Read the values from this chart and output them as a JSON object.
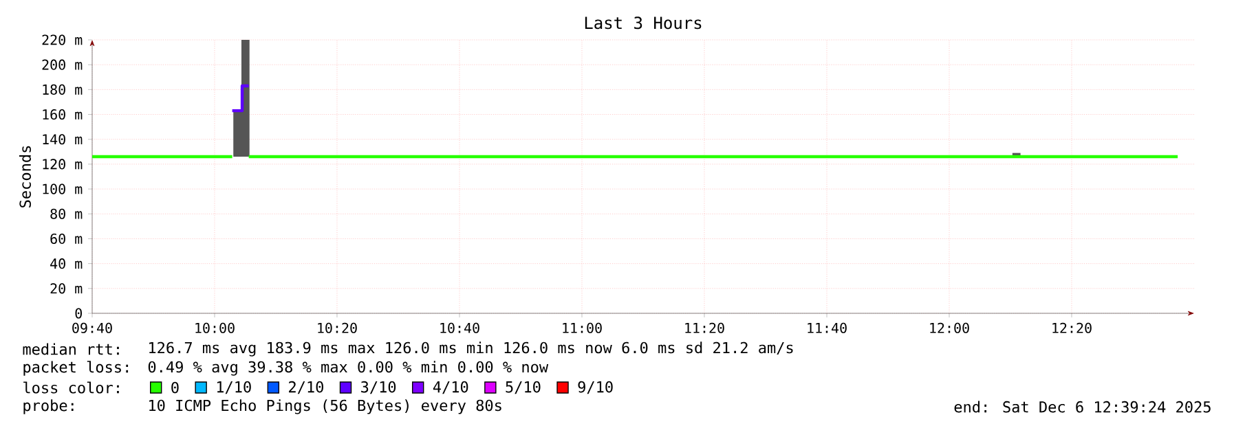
{
  "chart_data": {
    "type": "line",
    "title": "Last 3 Hours",
    "ylabel": "Seconds",
    "xlim": [
      9.6667,
      12.6667
    ],
    "ylim": [
      0,
      220
    ],
    "xticks": [
      {
        "value": 9.6667,
        "label": "09:40"
      },
      {
        "value": 10,
        "label": "10:00"
      },
      {
        "value": 10.3333,
        "label": "10:20"
      },
      {
        "value": 10.6667,
        "label": "10:40"
      },
      {
        "value": 11,
        "label": "11:00"
      },
      {
        "value": 11.3333,
        "label": "11:20"
      },
      {
        "value": 11.6667,
        "label": "11:40"
      },
      {
        "value": 12,
        "label": "12:00"
      },
      {
        "value": 12.3333,
        "label": "12:20"
      }
    ],
    "yticks": [
      0,
      {
        "value": 20,
        "label": "20 m"
      },
      {
        "value": 40,
        "label": "40 m"
      },
      {
        "value": 60,
        "label": "60 m"
      },
      {
        "value": 80,
        "label": "80 m"
      },
      {
        "value": 100,
        "label": "100 m"
      },
      {
        "value": 120,
        "label": "120 m"
      },
      {
        "value": 140,
        "label": "140 m"
      },
      {
        "value": 160,
        "label": "160 m"
      },
      {
        "value": 180,
        "label": "180 m"
      },
      {
        "value": 200,
        "label": "200 m"
      },
      {
        "value": 220,
        "label": "220 m"
      }
    ],
    "grid": true,
    "legend": "bottom",
    "legend_title": "loss color:",
    "marker": "none",
    "series": [
      {
        "type": "bar",
        "color": "#555555",
        "x": [
          10.062,
          10.084,
          12.183
        ],
        "base": [
          126,
          126,
          126
        ],
        "values": [
          37,
          94,
          3
        ]
      },
      {
        "name": "0",
        "color": "#26ff00",
        "x": [
          9.6667,
          10.048,
          10.06,
          10.093,
          12.622
        ],
        "values": [
          126,
          126,
          null,
          126,
          126
        ]
      },
      {
        "name": "1/10",
        "color": "#00b8ff"
      },
      {
        "name": "2/10",
        "color": "#0059ff"
      },
      {
        "name": "3/10",
        "color": "#5e00ff",
        "x": [
          10.048,
          10.075,
          10.075,
          10.093
        ],
        "values": [
          163,
          163,
          183,
          183
        ]
      },
      {
        "name": "4/10",
        "color": "#7e00ff"
      },
      {
        "name": "5/10",
        "color": "#dd00ff"
      },
      {
        "name": "9/10",
        "color": "#ff0000"
      }
    ],
    "annotations": [
      "median rtt:",
      "126.7 ms avg  183.9 ms max  126.0 ms min  126.0 ms now  6.0 ms sd  21.2   am/s",
      "packet loss:",
      "0.49 % avg  39.38 % max  0.00 % min  0.00 % now",
      "probe:",
      "10 ICMP Echo Pings (56 Bytes) every 80s",
      "end: Sat Dec  6 12:39:24 2025"
    ]
  }
}
